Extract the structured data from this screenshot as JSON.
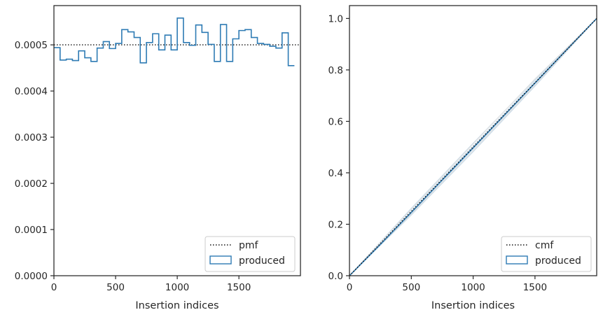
{
  "chart_data": [
    {
      "type": "line",
      "xlabel": "Insertion indices",
      "ylabel": "",
      "xlim": [
        0,
        1999
      ],
      "ylim": [
        0,
        0.000585
      ],
      "xticks": [
        0,
        500,
        1000,
        1500
      ],
      "xtick_labels": [
        "0",
        "500",
        "1000",
        "1500"
      ],
      "yticks": [
        0,
        0.0001,
        0.0002,
        0.0003,
        0.0004,
        0.0005
      ],
      "ytick_labels": [
        "0.0000",
        "0.0001",
        "0.0002",
        "0.0003",
        "0.0004",
        "0.0005"
      ],
      "grid": false,
      "legend_position": "lower-right",
      "reference": {
        "name": "pmf",
        "style": "dotted",
        "color": "#111111",
        "value": 0.0005
      },
      "produced": {
        "name": "produced",
        "color": "#2e7bb4",
        "bin_width": 50,
        "bin_values": [
          0.000494,
          0.000467,
          0.000469,
          0.000466,
          0.000487,
          0.000472,
          0.000464,
          0.000493,
          0.000507,
          0.000492,
          0.000503,
          0.000533,
          0.000528,
          0.000516,
          0.000461,
          0.000505,
          0.000524,
          0.000489,
          0.000521,
          0.000489,
          0.000558,
          0.000505,
          0.000499,
          0.000543,
          0.000527,
          0.000501,
          0.000464,
          0.000544,
          0.000464,
          0.000513,
          0.000531,
          0.000533,
          0.000516,
          0.000503,
          0.000501,
          0.000497,
          0.000493,
          0.000526,
          0.000455
        ]
      }
    },
    {
      "type": "line",
      "xlabel": "Insertion indices",
      "ylabel": "",
      "xlim": [
        0,
        1999
      ],
      "ylim": [
        0,
        1.05
      ],
      "xticks": [
        0,
        500,
        1000,
        1500
      ],
      "xtick_labels": [
        "0",
        "500",
        "1000",
        "1500"
      ],
      "yticks": [
        0,
        0.2,
        0.4,
        0.6,
        0.8,
        1.0
      ],
      "ytick_labels": [
        "0.0",
        "0.2",
        "0.4",
        "0.6",
        "0.8",
        "1.0"
      ],
      "grid": false,
      "legend_position": "lower-right",
      "reference": {
        "name": "cmf",
        "style": "dotted",
        "color": "#111111",
        "points": [
          [
            0,
            0
          ],
          [
            1999,
            1.0
          ]
        ]
      },
      "produced": {
        "name": "produced",
        "color": "#2e7bb4",
        "x": [
          0,
          250,
          500,
          750,
          1000,
          1250,
          1500,
          1750,
          1999
        ],
        "y": [
          0,
          0.122,
          0.246,
          0.372,
          0.497,
          0.623,
          0.749,
          0.875,
          1.0
        ]
      },
      "faint_series": [
        {
          "color": "#c9dbe8",
          "x": [
            0,
            500,
            1000,
            1500,
            1999
          ],
          "y": [
            0,
            0.262,
            0.515,
            0.762,
            1.0
          ]
        },
        {
          "color": "#c9dbe8",
          "x": [
            0,
            500,
            1000,
            1500,
            1999
          ],
          "y": [
            0,
            0.236,
            0.482,
            0.737,
            1.0
          ]
        },
        {
          "color": "#d4e3ee",
          "x": [
            0,
            500,
            1000,
            1500,
            1999
          ],
          "y": [
            0,
            0.255,
            0.505,
            0.757,
            1.0
          ]
        },
        {
          "color": "#d4e3ee",
          "x": [
            0,
            500,
            1000,
            1500,
            1999
          ],
          "y": [
            0,
            0.243,
            0.492,
            0.744,
            1.0
          ]
        },
        {
          "color": "#e1e1e1",
          "x": [
            0,
            500,
            1000,
            1500,
            1999
          ],
          "y": [
            0,
            0.258,
            0.512,
            0.765,
            1.0
          ]
        },
        {
          "color": "#e1e1e1",
          "x": [
            0,
            500,
            1000,
            1500,
            1999
          ],
          "y": [
            0,
            0.24,
            0.487,
            0.741,
            1.0
          ]
        }
      ]
    }
  ]
}
